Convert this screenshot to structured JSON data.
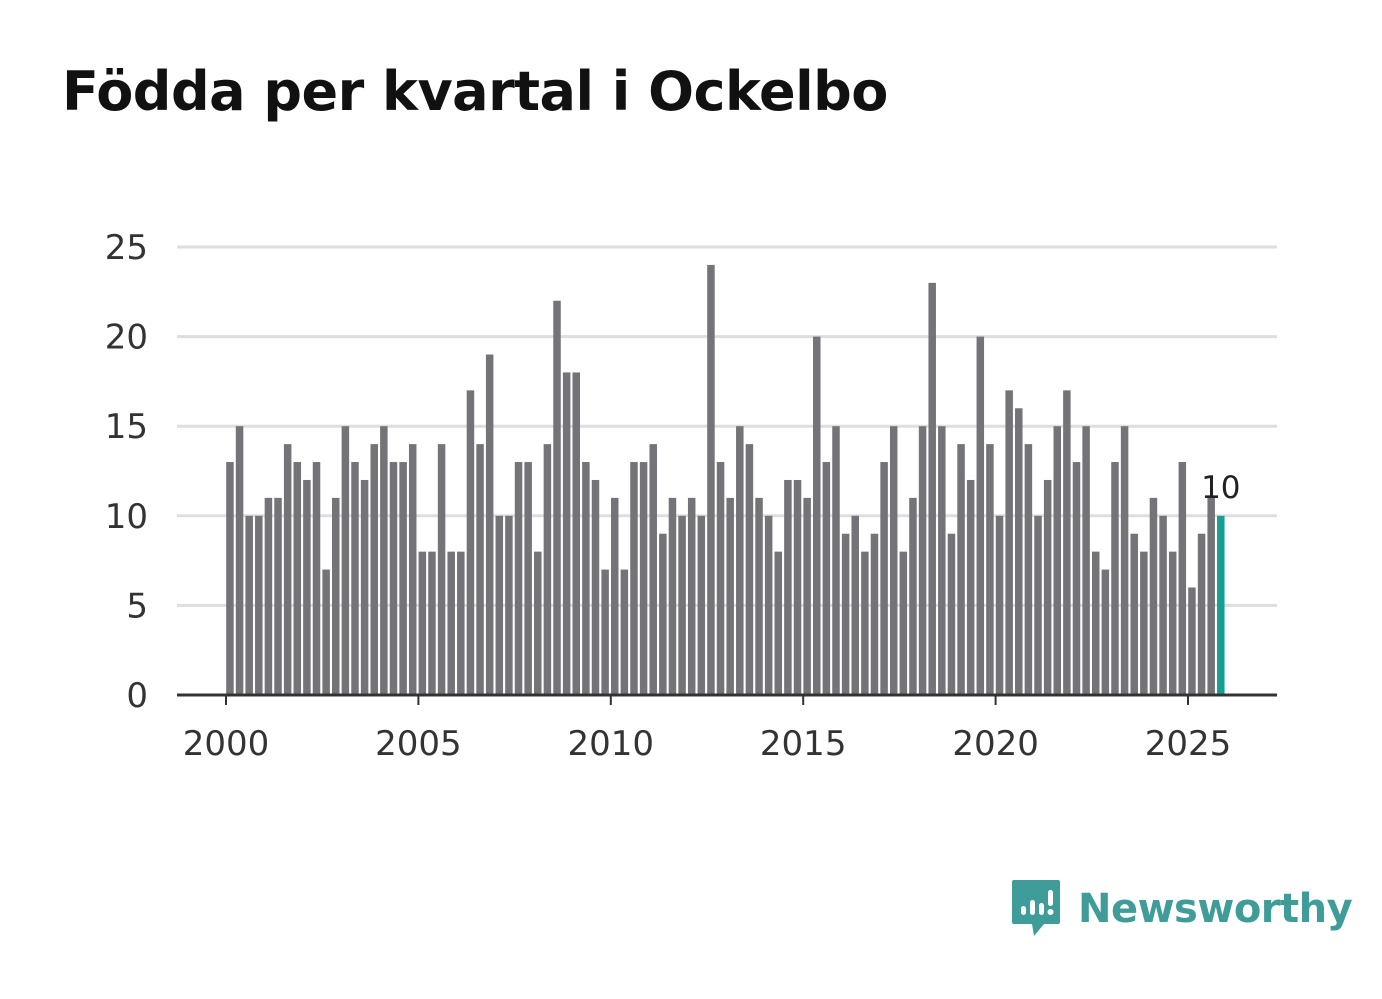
{
  "title": "Födda per kvartal i Ockelbo",
  "brand": {
    "name": "Newsworthy",
    "icon": "newsworthy-logo-icon",
    "color": "#3f9c98"
  },
  "colors": {
    "bar": "#747378",
    "highlight": "#14a094",
    "grid": "#dedede",
    "axis": "#333333"
  },
  "chart_data": {
    "type": "bar",
    "title": "Födda per kvartal i Ockelbo",
    "xlabel": "",
    "ylabel": "",
    "ylim": [
      0,
      25
    ],
    "yticks": [
      0,
      5,
      10,
      15,
      20,
      25
    ],
    "xticks": [
      2000,
      2005,
      2010,
      2015,
      2020,
      2025
    ],
    "xlim": [
      1999.9,
      2027.3
    ],
    "start_year": 2000,
    "quarters_per_year": 4,
    "highlight_label": "10",
    "values": [
      13,
      15,
      10,
      10,
      11,
      11,
      14,
      13,
      12,
      13,
      7,
      11,
      15,
      13,
      12,
      14,
      15,
      13,
      13,
      14,
      8,
      8,
      14,
      8,
      8,
      17,
      14,
      19,
      10,
      10,
      13,
      13,
      8,
      14,
      22,
      18,
      18,
      13,
      12,
      7,
      11,
      7,
      13,
      13,
      14,
      9,
      11,
      10,
      11,
      10,
      24,
      13,
      11,
      15,
      14,
      11,
      10,
      8,
      12,
      12,
      11,
      20,
      13,
      15,
      9,
      10,
      8,
      9,
      13,
      15,
      8,
      11,
      15,
      23,
      15,
      9,
      14,
      12,
      20,
      14,
      10,
      17,
      16,
      14,
      10,
      12,
      15,
      17,
      13,
      15,
      8,
      7,
      13,
      15,
      9,
      8,
      11,
      10,
      8,
      13,
      6,
      9,
      11,
      10
    ]
  }
}
